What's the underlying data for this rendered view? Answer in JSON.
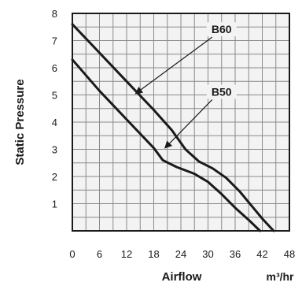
{
  "chart_data": {
    "type": "line",
    "title": "",
    "xlabel": "Airflow",
    "xunit": "m³/hr",
    "ylabel": "Static Pressure",
    "xlim": [
      0,
      48
    ],
    "ylim": [
      0,
      8
    ],
    "x_ticks": [
      "0",
      "6",
      "12",
      "18",
      "24",
      "30",
      "36",
      "42",
      "48"
    ],
    "y_ticks": [
      "1",
      "2",
      "3",
      "4",
      "5",
      "6",
      "7",
      "8"
    ],
    "grid": true,
    "series": [
      {
        "name": "B60",
        "x": [
          0,
          6,
          12,
          18,
          22,
          25,
          28,
          31,
          34,
          37,
          40,
          42,
          44.5
        ],
        "y": [
          7.6,
          6.55,
          5.5,
          4.45,
          3.7,
          3.0,
          2.55,
          2.3,
          1.95,
          1.45,
          0.85,
          0.45,
          0
        ]
      },
      {
        "name": "B50",
        "x": [
          0,
          6,
          12,
          18,
          20,
          23,
          27,
          30,
          33,
          36,
          39,
          41.5
        ],
        "y": [
          6.3,
          5.15,
          4.1,
          3.05,
          2.6,
          2.35,
          2.1,
          1.8,
          1.35,
          0.85,
          0.4,
          0
        ]
      }
    ],
    "annotations": [
      {
        "text": "B60",
        "series": "B60",
        "label_at": [
          33,
          7.3
        ],
        "arrow_to": [
          14,
          5.05
        ]
      },
      {
        "text": "B50",
        "series": "B50",
        "label_at": [
          33,
          5.0
        ],
        "arrow_to": [
          20.5,
          3.05
        ]
      }
    ]
  }
}
